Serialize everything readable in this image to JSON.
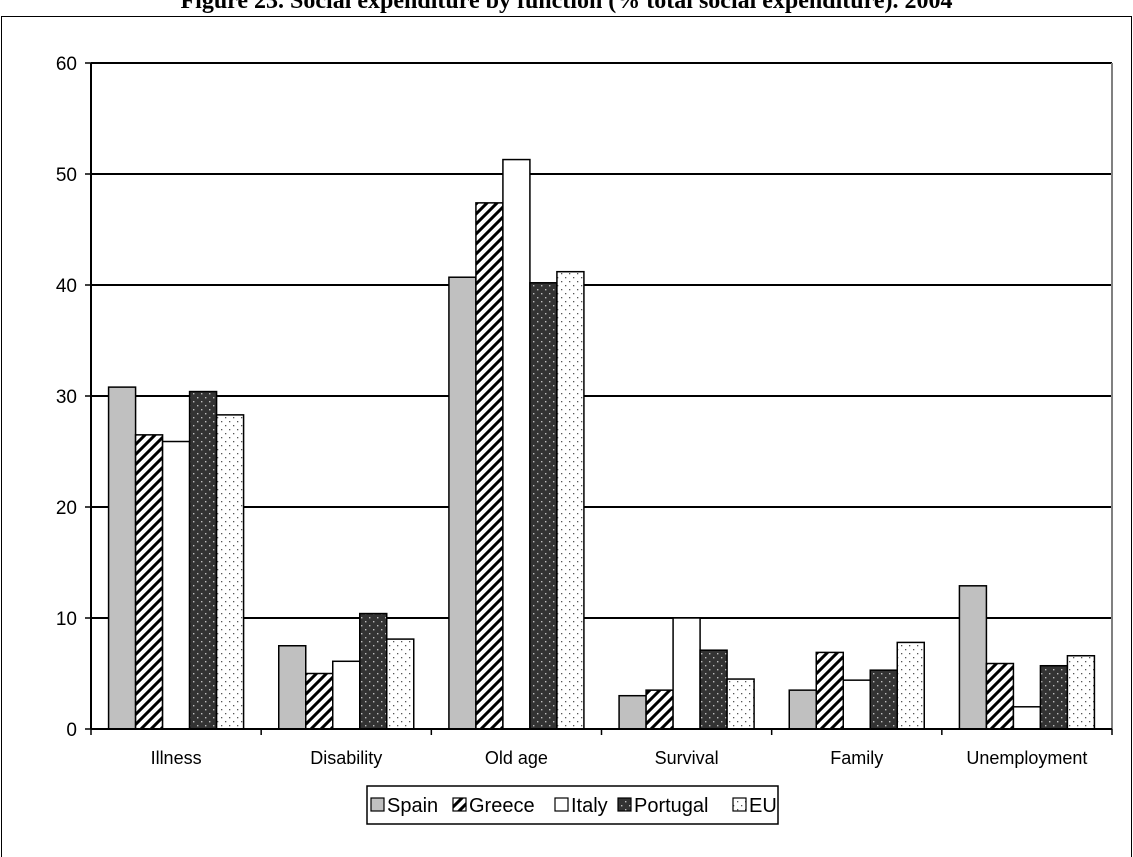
{
  "title": "Figure 23. Social expenditure by function (% total social expenditure). 2004",
  "chart_data": {
    "type": "bar",
    "title": "Figure 23. Social expenditure by function (% total social expenditure). 2004",
    "xlabel": "",
    "ylabel": "",
    "ylim": [
      0,
      60
    ],
    "yticks": [
      "0",
      "10",
      "20",
      "30",
      "40",
      "50",
      "60"
    ],
    "grid": true,
    "legend_position": "bottom",
    "categories": [
      "Illness",
      "Disability",
      "Old age",
      "Survival",
      "Family",
      "Unemployment"
    ],
    "series": [
      {
        "name": "Spain",
        "values": [
          30.8,
          7.5,
          40.7,
          3.0,
          3.5,
          12.9
        ],
        "pattern": "solid-gray",
        "color": "#c0c0c0"
      },
      {
        "name": "Greece",
        "values": [
          26.5,
          5.0,
          47.4,
          3.5,
          6.9,
          5.9
        ],
        "pattern": "diagonal-hatch",
        "color": "#ffffff"
      },
      {
        "name": "Italy",
        "values": [
          25.9,
          6.1,
          51.3,
          10.0,
          4.4,
          2.0
        ],
        "pattern": "white",
        "color": "#ffffff"
      },
      {
        "name": "Portugal",
        "values": [
          30.4,
          10.4,
          40.2,
          7.1,
          5.3,
          5.7
        ],
        "pattern": "dark-dotted",
        "color": "#333333"
      },
      {
        "name": "EU",
        "values": [
          28.3,
          8.1,
          41.2,
          4.5,
          7.8,
          6.6
        ],
        "pattern": "light-dotted",
        "color": "#ffffff"
      }
    ]
  }
}
